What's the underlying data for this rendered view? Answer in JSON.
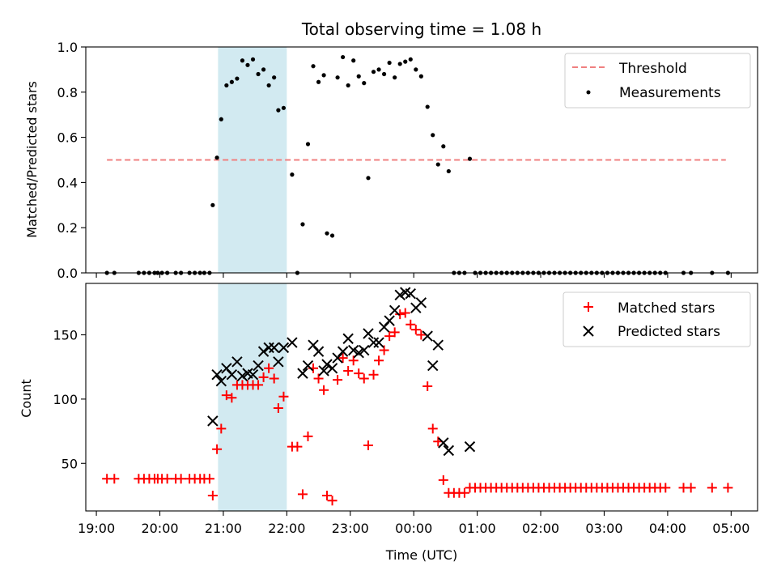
{
  "chart_data": [
    {
      "type": "scatter",
      "title": "Total observing time = 1.08 h",
      "xlabel": "",
      "ylabel": "Matched/Predicted stars",
      "ylim": [
        0,
        1.0
      ],
      "yticks": [
        "0.0",
        "0.2",
        "0.4",
        "0.6",
        "0.8",
        "1.0"
      ],
      "legend_position": "top-right",
      "shaded_interval": {
        "start": "20:55",
        "end": "22:00",
        "color": "#add8e6"
      },
      "threshold": {
        "name": "Threshold",
        "value": 0.5,
        "x_start": "19:10",
        "x_end": "04:55",
        "color": "#f08080",
        "style": "dashed"
      },
      "series": [
        {
          "name": "Measurements",
          "color": "#000000",
          "marker": "dot",
          "points": [
            [
              "19:10",
              0.0
            ],
            [
              "19:17",
              0.0
            ],
            [
              "19:40",
              0.0
            ],
            [
              "19:45",
              0.0
            ],
            [
              "19:50",
              0.0
            ],
            [
              "19:55",
              0.0
            ],
            [
              "19:58",
              0.0
            ],
            [
              "20:02",
              0.0
            ],
            [
              "20:07",
              0.0
            ],
            [
              "20:15",
              0.0
            ],
            [
              "20:20",
              0.0
            ],
            [
              "20:28",
              0.0
            ],
            [
              "20:33",
              0.0
            ],
            [
              "20:38",
              0.0
            ],
            [
              "20:42",
              0.0
            ],
            [
              "20:47",
              0.0
            ],
            [
              "20:50",
              0.3
            ],
            [
              "20:54",
              0.51
            ],
            [
              "20:58",
              0.68
            ],
            [
              "21:03",
              0.83
            ],
            [
              "21:08",
              0.845
            ],
            [
              "21:13",
              0.86
            ],
            [
              "21:18",
              0.94
            ],
            [
              "21:23",
              0.92
            ],
            [
              "21:28",
              0.945
            ],
            [
              "21:33",
              0.88
            ],
            [
              "21:38",
              0.9
            ],
            [
              "21:43",
              0.83
            ],
            [
              "21:48",
              0.865
            ],
            [
              "21:52",
              0.72
            ],
            [
              "21:57",
              0.73
            ],
            [
              "22:05",
              0.435
            ],
            [
              "22:10",
              0.0
            ],
            [
              "22:15",
              0.215
            ],
            [
              "22:20",
              0.57
            ],
            [
              "22:25",
              0.915
            ],
            [
              "22:30",
              0.845
            ],
            [
              "22:35",
              0.875
            ],
            [
              "22:38",
              0.175
            ],
            [
              "22:43",
              0.165
            ],
            [
              "22:48",
              0.865
            ],
            [
              "22:53",
              0.955
            ],
            [
              "22:58",
              0.83
            ],
            [
              "23:03",
              0.94
            ],
            [
              "23:08",
              0.87
            ],
            [
              "23:13",
              0.84
            ],
            [
              "23:17",
              0.42
            ],
            [
              "23:22",
              0.89
            ],
            [
              "23:27",
              0.9
            ],
            [
              "23:32",
              0.88
            ],
            [
              "23:37",
              0.93
            ],
            [
              "23:42",
              0.865
            ],
            [
              "23:47",
              0.925
            ],
            [
              "23:52",
              0.935
            ],
            [
              "23:57",
              0.945
            ],
            [
              "00:02",
              0.9
            ],
            [
              "00:07",
              0.87
            ],
            [
              "00:13",
              0.735
            ],
            [
              "00:18",
              0.61
            ],
            [
              "00:23",
              0.48
            ],
            [
              "00:28",
              0.56
            ],
            [
              "00:33",
              0.45
            ],
            [
              "00:38",
              0.0
            ],
            [
              "00:43",
              0.0
            ],
            [
              "00:48",
              0.0
            ],
            [
              "00:53",
              0.505
            ],
            [
              "00:58",
              0.0
            ],
            [
              "01:03",
              0.0
            ],
            [
              "01:08",
              0.0
            ],
            [
              "01:13",
              0.0
            ],
            [
              "01:18",
              0.0
            ],
            [
              "01:23",
              0.0
            ],
            [
              "01:28",
              0.0
            ],
            [
              "01:33",
              0.0
            ],
            [
              "01:38",
              0.0
            ],
            [
              "01:43",
              0.0
            ],
            [
              "01:48",
              0.0
            ],
            [
              "01:53",
              0.0
            ],
            [
              "01:58",
              0.0
            ],
            [
              "02:03",
              0.0
            ],
            [
              "02:08",
              0.0
            ],
            [
              "02:13",
              0.0
            ],
            [
              "02:18",
              0.0
            ],
            [
              "02:23",
              0.0
            ],
            [
              "02:28",
              0.0
            ],
            [
              "02:33",
              0.0
            ],
            [
              "02:38",
              0.0
            ],
            [
              "02:43",
              0.0
            ],
            [
              "02:48",
              0.0
            ],
            [
              "02:53",
              0.0
            ],
            [
              "02:58",
              0.0
            ],
            [
              "03:03",
              0.0
            ],
            [
              "03:08",
              0.0
            ],
            [
              "03:13",
              0.0
            ],
            [
              "03:18",
              0.0
            ],
            [
              "03:23",
              0.0
            ],
            [
              "03:28",
              0.0
            ],
            [
              "03:33",
              0.0
            ],
            [
              "03:38",
              0.0
            ],
            [
              "03:43",
              0.0
            ],
            [
              "03:48",
              0.0
            ],
            [
              "03:53",
              0.0
            ],
            [
              "03:58",
              0.0
            ],
            [
              "04:15",
              0.0
            ],
            [
              "04:22",
              0.0
            ],
            [
              "04:42",
              0.0
            ],
            [
              "04:57",
              0.0
            ]
          ]
        }
      ]
    },
    {
      "type": "scatter",
      "title": "",
      "xlabel": "Time (UTC)",
      "ylabel": "Count",
      "ylim": [
        13,
        190
      ],
      "yticks": [
        "50",
        "100",
        "150"
      ],
      "xlim": [
        "18:50",
        "05:25"
      ],
      "xticks": [
        "19:00",
        "20:00",
        "21:00",
        "22:00",
        "23:00",
        "00:00",
        "01:00",
        "02:00",
        "03:00",
        "04:00",
        "05:00"
      ],
      "legend_position": "top-right",
      "shaded_interval": {
        "start": "20:55",
        "end": "22:00",
        "color": "#add8e6"
      },
      "series": [
        {
          "name": "Matched stars",
          "color": "#ff0000",
          "marker": "plus",
          "points": [
            [
              "19:10",
              38
            ],
            [
              "19:17",
              38
            ],
            [
              "19:40",
              38
            ],
            [
              "19:45",
              38
            ],
            [
              "19:50",
              38
            ],
            [
              "19:55",
              38
            ],
            [
              "19:58",
              38
            ],
            [
              "20:02",
              38
            ],
            [
              "20:07",
              38
            ],
            [
              "20:15",
              38
            ],
            [
              "20:20",
              38
            ],
            [
              "20:28",
              38
            ],
            [
              "20:33",
              38
            ],
            [
              "20:38",
              38
            ],
            [
              "20:42",
              38
            ],
            [
              "20:47",
              38
            ],
            [
              "20:50",
              25
            ],
            [
              "20:54",
              61
            ],
            [
              "20:58",
              77
            ],
            [
              "21:03",
              103
            ],
            [
              "21:08",
              101
            ],
            [
              "21:13",
              111
            ],
            [
              "21:18",
              111
            ],
            [
              "21:23",
              111
            ],
            [
              "21:28",
              111
            ],
            [
              "21:33",
              111
            ],
            [
              "21:38",
              117
            ],
            [
              "21:43",
              124
            ],
            [
              "21:48",
              116
            ],
            [
              "21:52",
              93
            ],
            [
              "21:57",
              102
            ],
            [
              "22:05",
              63
            ],
            [
              "22:10",
              63
            ],
            [
              "22:15",
              26
            ],
            [
              "22:20",
              71
            ],
            [
              "22:25",
              124
            ],
            [
              "22:30",
              116
            ],
            [
              "22:35",
              107
            ],
            [
              "22:38",
              25
            ],
            [
              "22:43",
              21
            ],
            [
              "22:48",
              115
            ],
            [
              "22:53",
              132
            ],
            [
              "22:58",
              122
            ],
            [
              "23:03",
              130
            ],
            [
              "23:08",
              120
            ],
            [
              "23:13",
              116
            ],
            [
              "23:17",
              64
            ],
            [
              "23:22",
              119
            ],
            [
              "23:27",
              130
            ],
            [
              "23:32",
              138
            ],
            [
              "23:37",
              149
            ],
            [
              "23:42",
              152
            ],
            [
              "23:47",
              166
            ],
            [
              "23:52",
              167
            ],
            [
              "23:57",
              158
            ],
            [
              "00:02",
              154
            ],
            [
              "00:07",
              150
            ],
            [
              "00:13",
              110
            ],
            [
              "00:18",
              77
            ],
            [
              "00:23",
              67
            ],
            [
              "00:28",
              37
            ],
            [
              "00:33",
              27
            ],
            [
              "00:38",
              27
            ],
            [
              "00:43",
              27
            ],
            [
              "00:48",
              27
            ],
            [
              "00:53",
              31
            ],
            [
              "00:58",
              31
            ],
            [
              "01:03",
              31
            ],
            [
              "01:08",
              31
            ],
            [
              "01:13",
              31
            ],
            [
              "01:18",
              31
            ],
            [
              "01:23",
              31
            ],
            [
              "01:28",
              31
            ],
            [
              "01:33",
              31
            ],
            [
              "01:38",
              31
            ],
            [
              "01:43",
              31
            ],
            [
              "01:48",
              31
            ],
            [
              "01:53",
              31
            ],
            [
              "01:58",
              31
            ],
            [
              "02:03",
              31
            ],
            [
              "02:08",
              31
            ],
            [
              "02:13",
              31
            ],
            [
              "02:18",
              31
            ],
            [
              "02:23",
              31
            ],
            [
              "02:28",
              31
            ],
            [
              "02:33",
              31
            ],
            [
              "02:38",
              31
            ],
            [
              "02:43",
              31
            ],
            [
              "02:48",
              31
            ],
            [
              "02:53",
              31
            ],
            [
              "02:58",
              31
            ],
            [
              "03:03",
              31
            ],
            [
              "03:08",
              31
            ],
            [
              "03:13",
              31
            ],
            [
              "03:18",
              31
            ],
            [
              "03:23",
              31
            ],
            [
              "03:28",
              31
            ],
            [
              "03:33",
              31
            ],
            [
              "03:38",
              31
            ],
            [
              "03:43",
              31
            ],
            [
              "03:48",
              31
            ],
            [
              "03:53",
              31
            ],
            [
              "03:58",
              31
            ],
            [
              "04:15",
              31
            ],
            [
              "04:22",
              31
            ],
            [
              "04:42",
              31
            ],
            [
              "04:57",
              31
            ]
          ]
        },
        {
          "name": "Predicted stars",
          "color": "#000000",
          "marker": "x",
          "points": [
            [
              "20:50",
              83
            ],
            [
              "20:54",
              119
            ],
            [
              "20:58",
              114
            ],
            [
              "21:03",
              124
            ],
            [
              "21:08",
              119
            ],
            [
              "21:13",
              129
            ],
            [
              "21:18",
              118
            ],
            [
              "21:23",
              120
            ],
            [
              "21:28",
              119
            ],
            [
              "21:33",
              126
            ],
            [
              "21:38",
              137
            ],
            [
              "21:43",
              140
            ],
            [
              "21:48",
              140
            ],
            [
              "21:52",
              129
            ],
            [
              "21:57",
              140
            ],
            [
              "22:05",
              144
            ],
            [
              "22:15",
              120
            ],
            [
              "22:20",
              126
            ],
            [
              "22:25",
              142
            ],
            [
              "22:30",
              137
            ],
            [
              "22:35",
              122
            ],
            [
              "22:38",
              127
            ],
            [
              "22:43",
              124
            ],
            [
              "22:48",
              132
            ],
            [
              "22:53",
              137
            ],
            [
              "22:58",
              147
            ],
            [
              "23:03",
              138
            ],
            [
              "23:08",
              136
            ],
            [
              "23:13",
              138
            ],
            [
              "23:17",
              151
            ],
            [
              "23:22",
              144
            ],
            [
              "23:27",
              144
            ],
            [
              "23:32",
              156
            ],
            [
              "23:37",
              161
            ],
            [
              "23:42",
              169
            ],
            [
              "23:47",
              181
            ],
            [
              "23:52",
              183
            ],
            [
              "23:57",
              182
            ],
            [
              "00:02",
              171
            ],
            [
              "00:07",
              175
            ],
            [
              "00:13",
              149
            ],
            [
              "00:18",
              126
            ],
            [
              "00:23",
              142
            ],
            [
              "00:28",
              66
            ],
            [
              "00:33",
              60
            ],
            [
              "00:53",
              63
            ]
          ]
        }
      ]
    }
  ]
}
